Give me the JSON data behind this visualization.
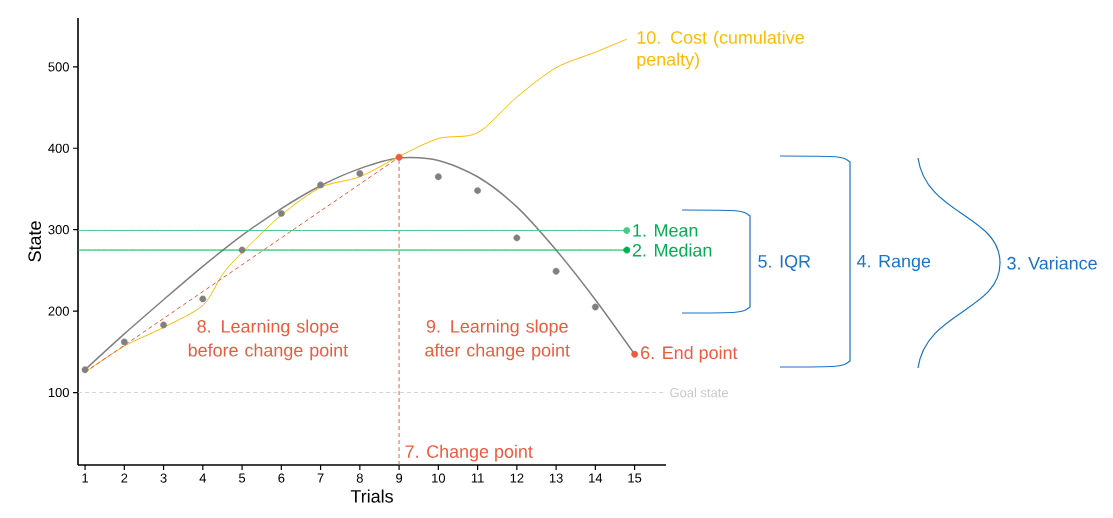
{
  "chart_data": {
    "type": "scatter",
    "xlabel": "Trials",
    "ylabel": "State",
    "xlim": [
      0.82,
      15.8
    ],
    "ylim": [
      11,
      560
    ],
    "xticks": [
      1,
      2,
      3,
      4,
      5,
      6,
      7,
      8,
      9,
      10,
      11,
      12,
      13,
      14,
      15
    ],
    "yticks": [
      100,
      200,
      300,
      400,
      500
    ],
    "series": [
      {
        "type": "line",
        "color": "#808080",
        "x": [
          1,
          2,
          3,
          4,
          5,
          6,
          7,
          8,
          9,
          10,
          11,
          12,
          13,
          14,
          15
        ],
        "values": [
          128,
          172,
          214,
          255,
          293,
          326,
          354,
          375,
          388,
          385,
          365,
          328,
          275,
          214,
          147
        ]
      },
      {
        "x": [
          1,
          2,
          3,
          4,
          5,
          6,
          7,
          8,
          9,
          10,
          11,
          12,
          13,
          14,
          15
        ],
        "values": [
          128,
          162,
          183,
          215,
          275,
          320,
          355,
          369,
          389,
          365,
          348,
          290,
          249,
          205,
          147
        ],
        "colors": [
          "#808080",
          "#808080",
          "#808080",
          "#808080",
          "#808080",
          "#808080",
          "#808080",
          "#808080",
          "#f05a3c",
          "#808080",
          "#808080",
          "#808080",
          "#808080",
          "#808080",
          "#f05a3c"
        ]
      },
      {
        "type": "line",
        "name": "10. Cost (cumulative penalty)",
        "color": "#ffb900",
        "x": [
          1,
          2,
          3,
          4,
          4.5,
          5,
          6,
          7,
          8,
          9,
          10,
          11,
          12,
          13,
          14,
          14.8
        ],
        "values": [
          125,
          157,
          180,
          207,
          245,
          272,
          318,
          352,
          365,
          390,
          412,
          419,
          463,
          499,
          518,
          534
        ]
      },
      {
        "type": "line",
        "color": "#f05a3c",
        "line_style": "dashed",
        "x": [
          1,
          9
        ],
        "values": [
          125,
          389
        ]
      },
      {
        "type": "line",
        "color": "#f05a3c",
        "line_style": "dashed",
        "x": [
          9,
          9
        ],
        "values": [
          11,
          389
        ]
      },
      {
        "type": "line",
        "name": "1. Mean",
        "color": "#4cc987",
        "marker": "circle",
        "x": [
          0.82,
          14.8
        ],
        "values": [
          299,
          299
        ]
      },
      {
        "type": "line",
        "name": "2. Median",
        "color": "#00b050",
        "marker": "circle",
        "x": [
          0.82,
          14.8
        ],
        "values": [
          275,
          275
        ]
      }
    ],
    "ref_lines": [
      {
        "axis": "y",
        "value": 100,
        "label": "Goal state",
        "color": "#c8c8c8",
        "line_style": "dashed"
      }
    ],
    "annotations": [
      {
        "text": "6. End point",
        "x": 15,
        "y": 147
      },
      {
        "text": "7. Change point",
        "x": 9,
        "y": 11
      },
      "8. Learning slope before change point",
      "9. Learning slope after change point",
      "5. IQR",
      "4. Range",
      "3. Variance"
    ]
  }
}
